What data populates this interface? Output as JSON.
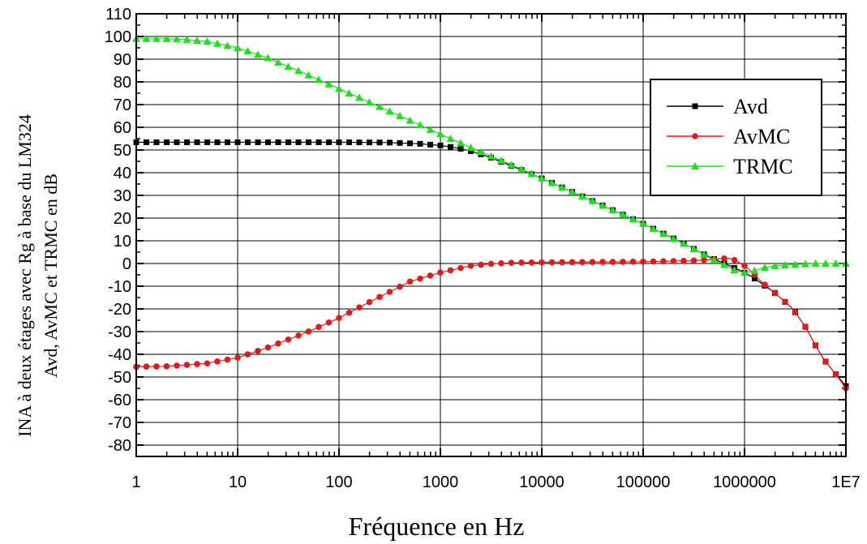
{
  "chart_data": {
    "type": "line",
    "xscale": "log",
    "xlim": [
      1,
      10000000
    ],
    "ylim": [
      -85,
      110
    ],
    "grid": true,
    "legend_position": "top-right",
    "xlabel": "Fréquence en Hz",
    "ylabel_line1": "INA à deux étages avec Rg à base du LM324",
    "ylabel_line2": "Avd, AvMC et TRMC en dB",
    "x_ticks": [
      {
        "value": 1,
        "label": "1"
      },
      {
        "value": 10,
        "label": "10"
      },
      {
        "value": 100,
        "label": "100"
      },
      {
        "value": 1000,
        "label": "1000"
      },
      {
        "value": 10000,
        "label": "10000"
      },
      {
        "value": 100000,
        "label": "100000"
      },
      {
        "value": 1000000,
        "label": "1000000"
      },
      {
        "value": 10000000,
        "label": "1E7"
      }
    ],
    "y_ticks": [
      110,
      100,
      90,
      80,
      70,
      60,
      50,
      40,
      30,
      20,
      10,
      0,
      -10,
      -20,
      -30,
      -40,
      -50,
      -60,
      -70,
      -80
    ],
    "series": [
      {
        "name": "Avd",
        "color": "#000000",
        "marker": "square",
        "points": [
          [
            1,
            53.4
          ],
          [
            10,
            53.4
          ],
          [
            100,
            53.4
          ],
          [
            300,
            53.3
          ],
          [
            600,
            52.8
          ],
          [
            1000,
            52.0
          ],
          [
            1500,
            50.8
          ],
          [
            2000,
            49.5
          ],
          [
            3000,
            47.0
          ],
          [
            5000,
            43.0
          ],
          [
            10000,
            37.5
          ],
          [
            30000,
            28.0
          ],
          [
            100000,
            17.5
          ],
          [
            200000,
            11.0
          ],
          [
            300000,
            7.0
          ],
          [
            400000,
            4.0
          ],
          [
            500000,
            2.0
          ],
          [
            600000,
            0.5
          ],
          [
            700000,
            -0.8
          ],
          [
            800000,
            -2.0
          ],
          [
            1000000,
            -4.0
          ],
          [
            1200000,
            -6.0
          ],
          [
            1500000,
            -9.0
          ],
          [
            2000000,
            -13.0
          ],
          [
            3000000,
            -20.0
          ],
          [
            4000000,
            -28.0
          ],
          [
            5000000,
            -36.0
          ],
          [
            6000000,
            -42.0
          ],
          [
            8000000,
            -49.0
          ],
          [
            10000000,
            -54.0
          ]
        ]
      },
      {
        "name": "AvMC",
        "color": "#e31a1c",
        "marker": "circle",
        "points": [
          [
            1,
            -45.5
          ],
          [
            2,
            -45.3
          ],
          [
            5,
            -44.0
          ],
          [
            10,
            -41.5
          ],
          [
            20,
            -37.0
          ],
          [
            50,
            -30.0
          ],
          [
            100,
            -24.0
          ],
          [
            200,
            -17.0
          ],
          [
            500,
            -8.0
          ],
          [
            1000,
            -4.0
          ],
          [
            2000,
            -1.0
          ],
          [
            3000,
            -0.2
          ],
          [
            5000,
            0.3
          ],
          [
            10000,
            0.5
          ],
          [
            100000,
            0.8
          ],
          [
            300000,
            1.2
          ],
          [
            500000,
            1.8
          ],
          [
            600000,
            2.2
          ],
          [
            700000,
            2.3
          ],
          [
            800000,
            1.5
          ],
          [
            1000000,
            -1.0
          ],
          [
            1200000,
            -4.0
          ],
          [
            1500000,
            -8.5
          ],
          [
            2000000,
            -13.0
          ],
          [
            3000000,
            -20.0
          ],
          [
            4000000,
            -28.0
          ],
          [
            5000000,
            -36.0
          ],
          [
            6000000,
            -42.0
          ],
          [
            8000000,
            -49.0
          ],
          [
            10000000,
            -55.0
          ]
        ]
      },
      {
        "name": "TRMC",
        "color": "#1ee01e",
        "marker": "triangle",
        "points": [
          [
            1,
            99.0
          ],
          [
            2,
            99.0
          ],
          [
            3,
            98.7
          ],
          [
            5,
            97.8
          ],
          [
            10,
            95.0
          ],
          [
            20,
            90.5
          ],
          [
            50,
            83.0
          ],
          [
            100,
            77.0
          ],
          [
            200,
            71.0
          ],
          [
            500,
            63.0
          ],
          [
            1000,
            57.0
          ],
          [
            2000,
            51.0
          ],
          [
            5000,
            43.5
          ],
          [
            10000,
            37.5
          ],
          [
            30000,
            28.0
          ],
          [
            100000,
            17.5
          ],
          [
            300000,
            7.0
          ],
          [
            500000,
            1.5
          ],
          [
            700000,
            -1.5
          ],
          [
            800000,
            -3.0
          ],
          [
            1000000,
            -4.0
          ],
          [
            1200000,
            -3.5
          ],
          [
            1500000,
            -2.0
          ],
          [
            2000000,
            -1.0
          ],
          [
            3000000,
            -0.5
          ],
          [
            5000000,
            0.0
          ],
          [
            10000000,
            0.0
          ]
        ]
      }
    ]
  }
}
